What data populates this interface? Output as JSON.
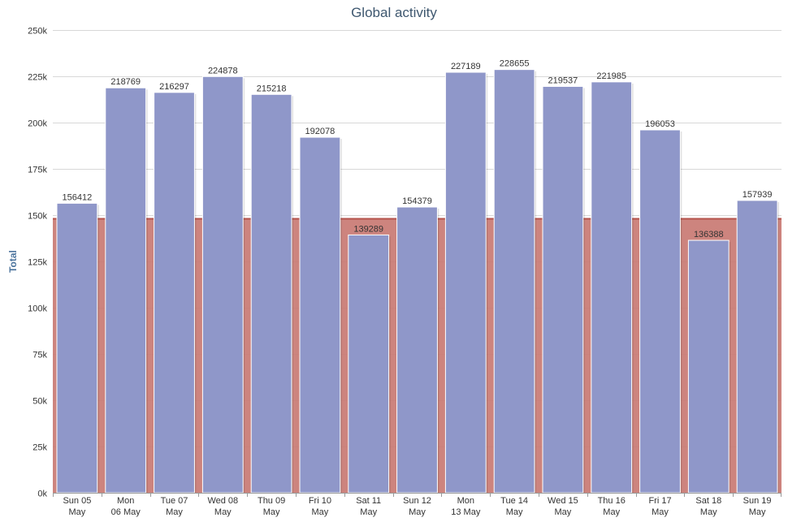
{
  "chart_data": {
    "type": "bar",
    "title": "Global activity",
    "xlabel": "",
    "ylabel": "Total",
    "ylim": [
      0,
      250000
    ],
    "yticks": [
      "0k",
      "25k",
      "50k",
      "75k",
      "100k",
      "125k",
      "150k",
      "175k",
      "200k",
      "225k",
      "250k"
    ],
    "categories": [
      [
        "Sun 05",
        "May"
      ],
      [
        "Mon",
        "06 May"
      ],
      [
        "Tue 07",
        "May"
      ],
      [
        "Wed 08",
        "May"
      ],
      [
        "Thu 09",
        "May"
      ],
      [
        "Fri 10",
        "May"
      ],
      [
        "Sat 11",
        "May"
      ],
      [
        "Sun 12",
        "May"
      ],
      [
        "Mon",
        "13 May"
      ],
      [
        "Tue 14",
        "May"
      ],
      [
        "Wed 15",
        "May"
      ],
      [
        "Thu 16",
        "May"
      ],
      [
        "Fri 17",
        "May"
      ],
      [
        "Sat 18",
        "May"
      ],
      [
        "Sun 19",
        "May"
      ]
    ],
    "series": [
      {
        "type": "bar",
        "color": "#8f97c9",
        "values": [
          156412,
          218769,
          216297,
          224878,
          215218,
          192078,
          139289,
          154379,
          227189,
          228655,
          219537,
          221985,
          196053,
          136388,
          157939
        ],
        "data_labels": true
      },
      {
        "type": "area",
        "color": "#c97973",
        "values": [
          148000,
          148000,
          148000,
          148000,
          148000,
          148000,
          148000,
          148000,
          148000,
          148000,
          148000,
          148000,
          148000,
          148000,
          148000
        ]
      }
    ],
    "grid": true,
    "legend": "none"
  }
}
